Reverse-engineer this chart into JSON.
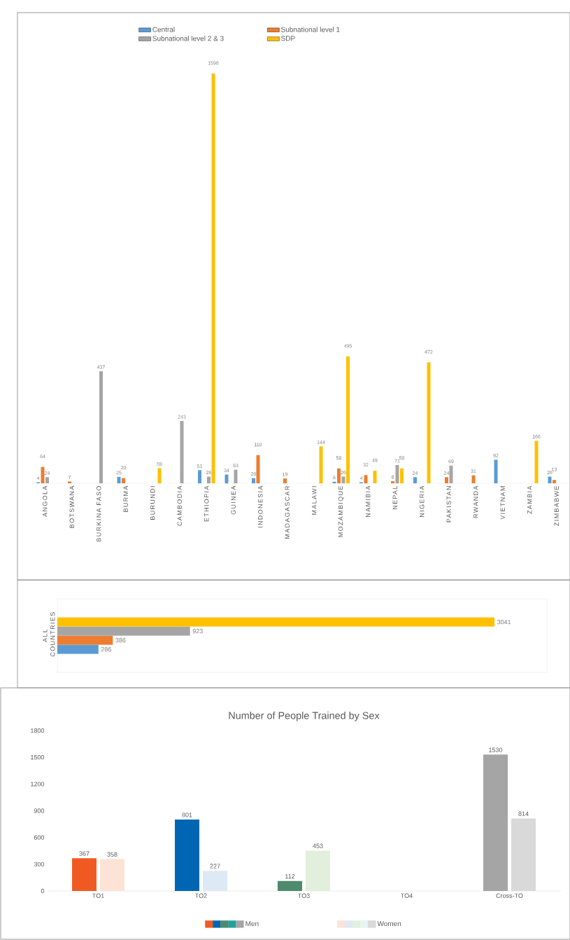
{
  "chart_data": [
    {
      "type": "bar",
      "categories": [
        "ANGOLA",
        "BOTSWANA",
        "BURKINA FASO",
        "BURMA",
        "BURUNDI",
        "CAMBODIA",
        "ETHIOPIA",
        "GUINEA",
        "INDONESIA",
        "MADAGASCAR",
        "MALAWI",
        "MOZAMBIQUE",
        "NAMIBIA",
        "NEPAL",
        "NIGERIA",
        "PAKISTAN",
        "RWANDA",
        "VIETNAM",
        "ZAMBIA",
        "ZIMBABWE"
      ],
      "series": [
        {
          "name": "Central",
          "color": "#5b9bd5",
          "values": [
            4,
            null,
            null,
            25,
            null,
            null,
            51,
            34,
            20,
            null,
            null,
            6,
            4,
            null,
            24,
            null,
            null,
            92,
            null,
            26
          ]
        },
        {
          "name": "Subnational level 1",
          "color": "#ed7d31",
          "values": [
            64,
            7,
            null,
            20,
            null,
            null,
            null,
            null,
            110,
            19,
            null,
            58,
            32,
            8,
            null,
            24,
            31,
            null,
            null,
            13
          ]
        },
        {
          "name": "Subnational level 2 & 3",
          "color": "#a5a5a5",
          "values": [
            24,
            null,
            437,
            null,
            null,
            243,
            26,
            53,
            null,
            null,
            null,
            26,
            null,
            71,
            null,
            69,
            null,
            null,
            null,
            null
          ]
        },
        {
          "name": "SDP",
          "color": "#ffc000",
          "values": [
            null,
            null,
            null,
            null,
            59,
            null,
            1598,
            null,
            null,
            null,
            144,
            495,
            49,
            58,
            472,
            null,
            null,
            null,
            166,
            null
          ]
        }
      ],
      "data_labels": true,
      "legend": "top"
    },
    {
      "type": "bar",
      "orientation": "horizontal",
      "categories": [
        "ALL COUNTRIES"
      ],
      "series": [
        {
          "color": "#5b9bd5",
          "values": [
            286
          ]
        },
        {
          "color": "#ed7d31",
          "values": [
            386
          ]
        },
        {
          "color": "#a5a5a5",
          "values": [
            923
          ]
        },
        {
          "color": "#ffc000",
          "values": [
            3041
          ]
        }
      ],
      "data_labels": true
    },
    {
      "type": "bar",
      "title": "Number of People Trained by Sex",
      "categories": [
        "TO1",
        "TO2",
        "TO3",
        "TO4",
        "Cross-TO"
      ],
      "series": [
        {
          "name": "Men",
          "colors": [
            "#f05a22",
            "#0066b3",
            "#4e8a6c",
            "#21a19a",
            "#a5a5a5"
          ],
          "values": [
            367,
            801,
            112,
            null,
            1530
          ]
        },
        {
          "name": "Women",
          "colors": [
            "#fce3d6",
            "#dde9f4",
            "#e2efdc",
            "#e6f4f3",
            "#d9d9d9"
          ],
          "values": [
            358,
            227,
            453,
            null,
            814
          ]
        }
      ],
      "ylim": [
        0,
        1800
      ],
      "yticks": [
        0,
        300,
        600,
        900,
        1200,
        1500,
        1800
      ],
      "data_labels": true,
      "legend": "bottom"
    }
  ]
}
